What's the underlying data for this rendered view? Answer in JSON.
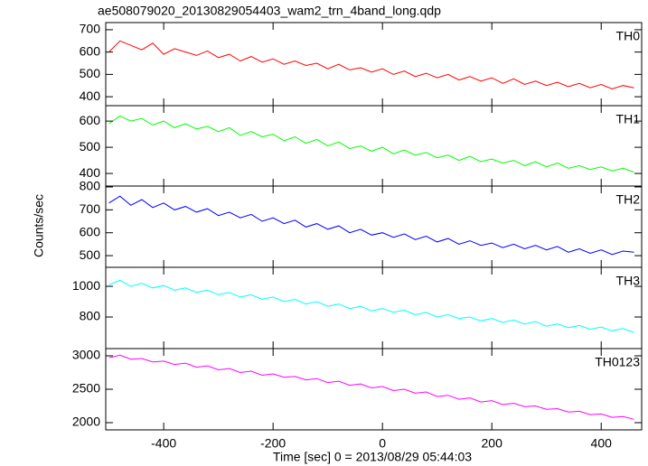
{
  "figure": {
    "title": "ae508079020_20130829054403_wam2_trn_4band_long.qdp",
    "xlabel": "Time [sec] 0 = 2013/08/29 05:44:03",
    "ylabel": "Counts/sec"
  },
  "chart_data": [
    {
      "type": "line",
      "name": "TH0",
      "color": "#ff0000",
      "xlim": [
        -506,
        474
      ],
      "xticks": [
        -400,
        -200,
        0,
        200,
        400
      ],
      "ylim": [
        360,
        732
      ],
      "yticks": [
        400,
        500,
        600,
        700
      ],
      "x": [
        -500,
        -480,
        -460,
        -440,
        -420,
        -400,
        -380,
        -360,
        -340,
        -320,
        -300,
        -280,
        -260,
        -240,
        -220,
        -200,
        -180,
        -160,
        -140,
        -120,
        -100,
        -80,
        -60,
        -40,
        -20,
        0,
        20,
        40,
        60,
        80,
        100,
        120,
        140,
        160,
        180,
        200,
        220,
        240,
        260,
        280,
        300,
        320,
        340,
        360,
        380,
        400,
        420,
        440,
        460
      ],
      "values": [
        600,
        650,
        630,
        610,
        640,
        590,
        615,
        600,
        585,
        605,
        575,
        590,
        560,
        580,
        555,
        570,
        545,
        560,
        540,
        550,
        525,
        545,
        520,
        530,
        510,
        525,
        500,
        515,
        490,
        505,
        485,
        500,
        475,
        490,
        470,
        485,
        460,
        480,
        455,
        470,
        450,
        465,
        445,
        460,
        440,
        455,
        435,
        450,
        440
      ]
    },
    {
      "type": "line",
      "name": "TH1",
      "color": "#00ff00",
      "xlim": [
        -506,
        474
      ],
      "xticks": [
        -400,
        -200,
        0,
        200,
        400
      ],
      "ylim": [
        352,
        659
      ],
      "yticks": [
        400,
        500,
        600
      ],
      "x": [
        -500,
        -480,
        -460,
        -440,
        -420,
        -400,
        -380,
        -360,
        -340,
        -320,
        -300,
        -280,
        -260,
        -240,
        -220,
        -200,
        -180,
        -160,
        -140,
        -120,
        -100,
        -80,
        -60,
        -40,
        -20,
        0,
        20,
        40,
        60,
        80,
        100,
        120,
        140,
        160,
        180,
        200,
        220,
        240,
        260,
        280,
        300,
        320,
        340,
        360,
        380,
        400,
        420,
        440,
        460
      ],
      "values": [
        590,
        620,
        600,
        610,
        585,
        600,
        575,
        590,
        570,
        580,
        560,
        575,
        545,
        560,
        540,
        550,
        525,
        540,
        515,
        530,
        505,
        520,
        495,
        505,
        485,
        500,
        475,
        490,
        470,
        480,
        460,
        470,
        450,
        465,
        445,
        455,
        440,
        450,
        430,
        445,
        425,
        440,
        420,
        430,
        415,
        425,
        410,
        420,
        405
      ]
    },
    {
      "type": "line",
      "name": "TH2",
      "color": "#0000ff",
      "xlim": [
        -506,
        474
      ],
      "xticks": [
        -400,
        -200,
        0,
        200,
        400
      ],
      "ylim": [
        449,
        804
      ],
      "yticks": [
        500,
        600,
        700,
        800
      ],
      "x": [
        -500,
        -480,
        -460,
        -440,
        -420,
        -400,
        -380,
        -360,
        -340,
        -320,
        -300,
        -280,
        -260,
        -240,
        -220,
        -200,
        -180,
        -160,
        -140,
        -120,
        -100,
        -80,
        -60,
        -40,
        -20,
        0,
        20,
        40,
        60,
        80,
        100,
        120,
        140,
        160,
        180,
        200,
        220,
        240,
        260,
        280,
        300,
        320,
        340,
        360,
        380,
        400,
        420,
        440,
        460
      ],
      "values": [
        730,
        760,
        720,
        745,
        710,
        730,
        700,
        715,
        690,
        705,
        675,
        690,
        665,
        680,
        650,
        665,
        640,
        655,
        625,
        640,
        615,
        630,
        600,
        615,
        590,
        600,
        580,
        595,
        570,
        585,
        560,
        575,
        550,
        565,
        545,
        555,
        535,
        550,
        530,
        545,
        525,
        540,
        515,
        530,
        510,
        525,
        505,
        520,
        515
      ]
    },
    {
      "type": "line",
      "name": "TH3",
      "color": "#00ffff",
      "xlim": [
        -506,
        474
      ],
      "xticks": [
        -400,
        -200,
        0,
        200,
        400
      ],
      "ylim": [
        594,
        1124
      ],
      "yticks": [
        800,
        1000
      ],
      "x": [
        -500,
        -480,
        -460,
        -440,
        -420,
        -400,
        -380,
        -360,
        -340,
        -320,
        -300,
        -280,
        -260,
        -240,
        -220,
        -200,
        -180,
        -160,
        -140,
        -120,
        -100,
        -80,
        -60,
        -40,
        -20,
        0,
        20,
        40,
        60,
        80,
        100,
        120,
        140,
        160,
        180,
        200,
        220,
        240,
        260,
        280,
        300,
        320,
        340,
        360,
        380,
        400,
        420,
        440,
        460
      ],
      "values": [
        1010,
        1040,
        1000,
        1020,
        990,
        1005,
        975,
        990,
        960,
        975,
        945,
        960,
        930,
        945,
        915,
        930,
        900,
        915,
        885,
        900,
        870,
        885,
        855,
        870,
        840,
        855,
        830,
        845,
        815,
        830,
        800,
        815,
        790,
        800,
        775,
        790,
        765,
        780,
        755,
        770,
        740,
        755,
        730,
        745,
        720,
        735,
        710,
        725,
        700
      ]
    },
    {
      "type": "line",
      "name": "TH0123",
      "color": "#ff00ff",
      "xlim": [
        -506,
        474
      ],
      "xticks": [
        -400,
        -200,
        0,
        200,
        400
      ],
      "ylim": [
        1892,
        3108
      ],
      "yticks": [
        2000,
        2500,
        3000
      ],
      "x": [
        -500,
        -480,
        -460,
        -440,
        -420,
        -400,
        -380,
        -360,
        -340,
        -320,
        -300,
        -280,
        -260,
        -240,
        -220,
        -200,
        -180,
        -160,
        -140,
        -120,
        -100,
        -80,
        -60,
        -40,
        -20,
        0,
        20,
        40,
        60,
        80,
        100,
        120,
        140,
        160,
        180,
        200,
        220,
        240,
        260,
        280,
        300,
        320,
        340,
        360,
        380,
        400,
        420,
        440,
        460
      ],
      "values": [
        2970,
        3010,
        2950,
        2960,
        2910,
        2920,
        2870,
        2890,
        2830,
        2850,
        2790,
        2810,
        2750,
        2770,
        2710,
        2730,
        2680,
        2690,
        2640,
        2660,
        2600,
        2620,
        2560,
        2580,
        2520,
        2540,
        2480,
        2500,
        2440,
        2460,
        2390,
        2410,
        2350,
        2370,
        2310,
        2330,
        2270,
        2290,
        2240,
        2250,
        2200,
        2210,
        2160,
        2170,
        2120,
        2130,
        2080,
        2090,
        2050
      ]
    }
  ]
}
